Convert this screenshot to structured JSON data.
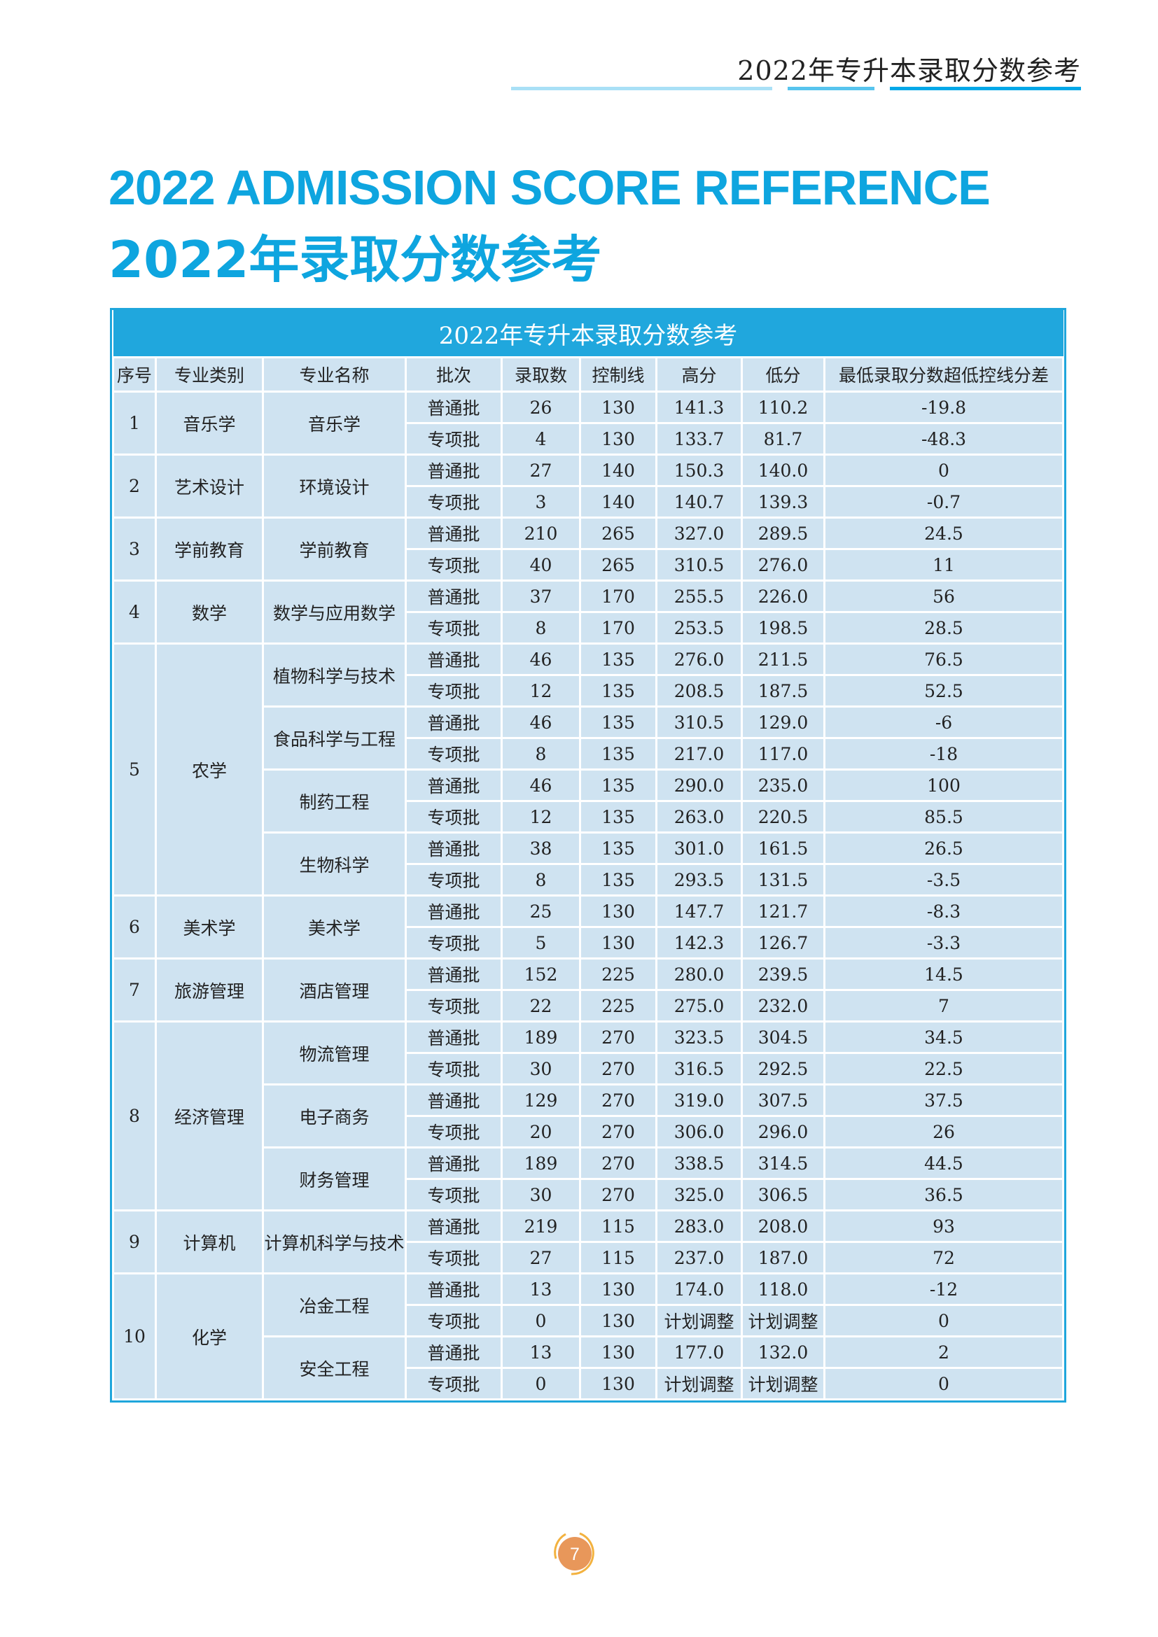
{
  "header": {
    "running_title": "2022年专升本录取分数参考"
  },
  "colors": {
    "accent": "#0ea5df",
    "bar_light": "#a9e0f6",
    "bar_mid": "#57c4ee",
    "bar_dark": "#00a8e8",
    "cell": "#cfe3f1",
    "page_badge": "#e8975a",
    "page_ring": "#f3b23f"
  },
  "title": {
    "english": "2022 ADMISSION SCORE REFERENCE",
    "chinese": "2022年录取分数参考"
  },
  "table": {
    "caption": "2022年专升本录取分数参考",
    "columns": [
      "序号",
      "专业类别",
      "专业名称",
      "批次",
      "录取数",
      "控制线",
      "高分",
      "低分",
      "最低录取分数超低控线分差"
    ],
    "groups": [
      {
        "no": "1",
        "category": "音乐学",
        "majors": [
          {
            "name": "音乐学",
            "rows": [
              [
                "普通批",
                "26",
                "130",
                "141.3",
                "110.2",
                "-19.8"
              ],
              [
                "专项批",
                "4",
                "130",
                "133.7",
                "81.7",
                "-48.3"
              ]
            ]
          }
        ]
      },
      {
        "no": "2",
        "category": "艺术设计",
        "majors": [
          {
            "name": "环境设计",
            "rows": [
              [
                "普通批",
                "27",
                "140",
                "150.3",
                "140.0",
                "0"
              ],
              [
                "专项批",
                "3",
                "140",
                "140.7",
                "139.3",
                "-0.7"
              ]
            ]
          }
        ]
      },
      {
        "no": "3",
        "category": "学前教育",
        "majors": [
          {
            "name": "学前教育",
            "rows": [
              [
                "普通批",
                "210",
                "265",
                "327.0",
                "289.5",
                "24.5"
              ],
              [
                "专项批",
                "40",
                "265",
                "310.5",
                "276.0",
                "11"
              ]
            ]
          }
        ]
      },
      {
        "no": "4",
        "category": "数学",
        "majors": [
          {
            "name": "数学与应用数学",
            "rows": [
              [
                "普通批",
                "37",
                "170",
                "255.5",
                "226.0",
                "56"
              ],
              [
                "专项批",
                "8",
                "170",
                "253.5",
                "198.5",
                "28.5"
              ]
            ]
          }
        ]
      },
      {
        "no": "5",
        "category": "农学",
        "majors": [
          {
            "name": "植物科学与技术",
            "rows": [
              [
                "普通批",
                "46",
                "135",
                "276.0",
                "211.5",
                "76.5"
              ],
              [
                "专项批",
                "12",
                "135",
                "208.5",
                "187.5",
                "52.5"
              ]
            ]
          },
          {
            "name": "食品科学与工程",
            "rows": [
              [
                "普通批",
                "46",
                "135",
                "310.5",
                "129.0",
                "-6"
              ],
              [
                "专项批",
                "8",
                "135",
                "217.0",
                "117.0",
                "-18"
              ]
            ]
          },
          {
            "name": "制药工程",
            "rows": [
              [
                "普通批",
                "46",
                "135",
                "290.0",
                "235.0",
                "100"
              ],
              [
                "专项批",
                "12",
                "135",
                "263.0",
                "220.5",
                "85.5"
              ]
            ]
          },
          {
            "name": "生物科学",
            "rows": [
              [
                "普通批",
                "38",
                "135",
                "301.0",
                "161.5",
                "26.5"
              ],
              [
                "专项批",
                "8",
                "135",
                "293.5",
                "131.5",
                "-3.5"
              ]
            ]
          }
        ]
      },
      {
        "no": "6",
        "category": "美术学",
        "majors": [
          {
            "name": "美术学",
            "rows": [
              [
                "普通批",
                "25",
                "130",
                "147.7",
                "121.7",
                "-8.3"
              ],
              [
                "专项批",
                "5",
                "130",
                "142.3",
                "126.7",
                "-3.3"
              ]
            ]
          }
        ]
      },
      {
        "no": "7",
        "category": "旅游管理",
        "majors": [
          {
            "name": "酒店管理",
            "rows": [
              [
                "普通批",
                "152",
                "225",
                "280.0",
                "239.5",
                "14.5"
              ],
              [
                "专项批",
                "22",
                "225",
                "275.0",
                "232.0",
                "7"
              ]
            ]
          }
        ]
      },
      {
        "no": "8",
        "category": "经济管理",
        "majors": [
          {
            "name": "物流管理",
            "rows": [
              [
                "普通批",
                "189",
                "270",
                "323.5",
                "304.5",
                "34.5"
              ],
              [
                "专项批",
                "30",
                "270",
                "316.5",
                "292.5",
                "22.5"
              ]
            ]
          },
          {
            "name": "电子商务",
            "rows": [
              [
                "普通批",
                "129",
                "270",
                "319.0",
                "307.5",
                "37.5"
              ],
              [
                "专项批",
                "20",
                "270",
                "306.0",
                "296.0",
                "26"
              ]
            ]
          },
          {
            "name": "财务管理",
            "rows": [
              [
                "普通批",
                "189",
                "270",
                "338.5",
                "314.5",
                "44.5"
              ],
              [
                "专项批",
                "30",
                "270",
                "325.0",
                "306.5",
                "36.5"
              ]
            ]
          }
        ]
      },
      {
        "no": "9",
        "category": "计算机",
        "majors": [
          {
            "name": "计算机科学与技术",
            "rows": [
              [
                "普通批",
                "219",
                "115",
                "283.0",
                "208.0",
                "93"
              ],
              [
                "专项批",
                "27",
                "115",
                "237.0",
                "187.0",
                "72"
              ]
            ]
          }
        ]
      },
      {
        "no": "10",
        "category": "化学",
        "majors": [
          {
            "name": "冶金工程",
            "rows": [
              [
                "普通批",
                "13",
                "130",
                "174.0",
                "118.0",
                "-12"
              ],
              [
                "专项批",
                "0",
                "130",
                "计划调整",
                "计划调整",
                "0"
              ]
            ]
          },
          {
            "name": "安全工程",
            "rows": [
              [
                "普通批",
                "13",
                "130",
                "177.0",
                "132.0",
                "2"
              ],
              [
                "专项批",
                "0",
                "130",
                "计划调整",
                "计划调整",
                "0"
              ]
            ]
          }
        ]
      }
    ]
  },
  "footer": {
    "page_number": "7"
  }
}
